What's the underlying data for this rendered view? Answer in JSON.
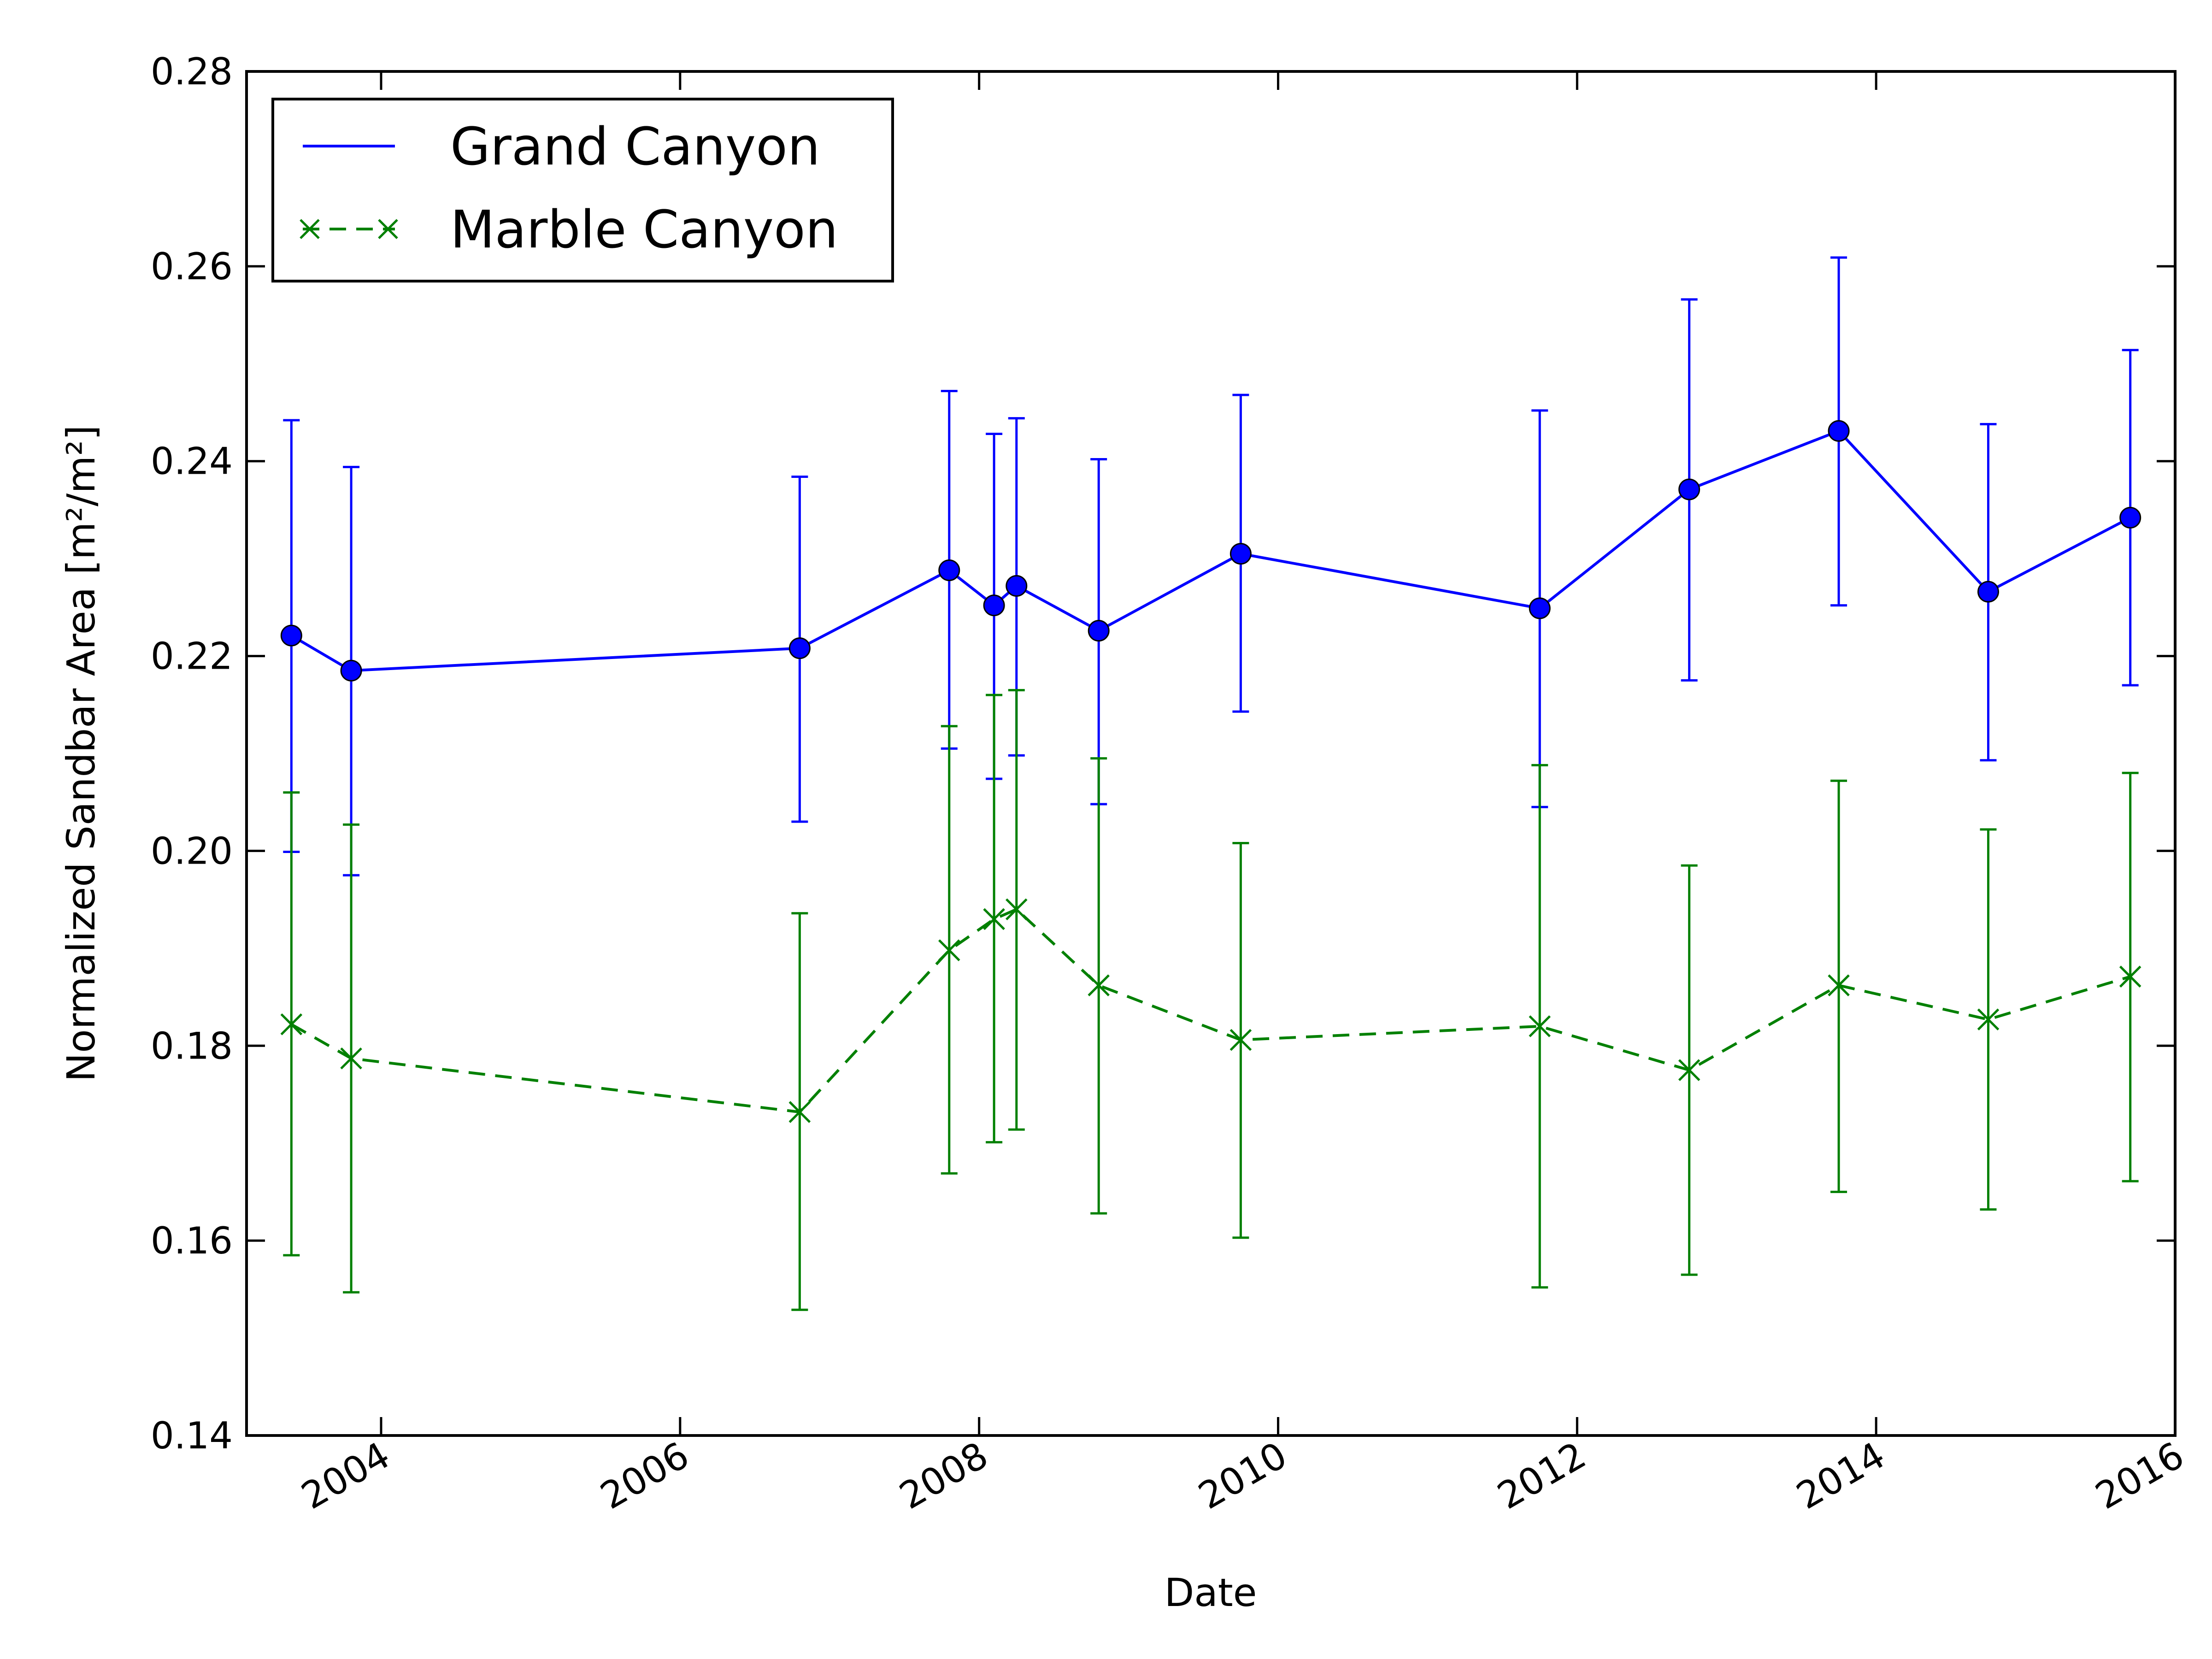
{
  "chart_data": {
    "type": "line",
    "xlabel": "Date",
    "ylabel": "Normalized Sandbar Area [m²/m²]",
    "xlim": [
      2003.1,
      2016.0
    ],
    "ylim": [
      0.14,
      0.28
    ],
    "x_ticks": [
      2004,
      2006,
      2008,
      2010,
      2012,
      2014,
      2016
    ],
    "y_ticks": [
      0.14,
      0.16,
      0.18,
      0.2,
      0.22,
      0.24,
      0.26,
      0.28
    ],
    "y_tick_labels": [
      "0.14",
      "0.16",
      "0.18",
      "0.20",
      "0.22",
      "0.24",
      "0.26",
      "0.28"
    ],
    "grid": false,
    "legend_position": "top-left",
    "series": [
      {
        "name": "Grand Canyon",
        "color": "#0000ff",
        "line_style": "solid",
        "marker": "circle",
        "x": [
          2003.4,
          2003.8,
          2006.8,
          2007.8,
          2008.1,
          2008.25,
          2008.8,
          2009.75,
          2011.75,
          2012.75,
          2013.75,
          2014.75,
          2015.7
        ],
        "y": [
          0.2221,
          0.2185,
          0.2208,
          0.2288,
          0.2252,
          0.2272,
          0.2226,
          0.2305,
          0.2249,
          0.2371,
          0.2431,
          0.2266,
          0.2342
        ],
        "err_low": [
          0.1999,
          0.1975,
          0.203,
          0.2105,
          0.2074,
          0.2098,
          0.2048,
          0.2143,
          0.2045,
          0.2175,
          0.2252,
          0.2093,
          0.217
        ],
        "err_high": [
          0.2442,
          0.2394,
          0.2384,
          0.2472,
          0.2428,
          0.2444,
          0.2402,
          0.2468,
          0.2452,
          0.2566,
          0.2609,
          0.2438,
          0.2514
        ]
      },
      {
        "name": "Marble Canyon",
        "color": "#008000",
        "line_style": "dashed",
        "marker": "x",
        "x": [
          2003.4,
          2003.8,
          2006.8,
          2007.8,
          2008.1,
          2008.25,
          2008.8,
          2009.75,
          2011.75,
          2012.75,
          2013.75,
          2014.75,
          2015.7
        ],
        "y": [
          0.1822,
          0.1787,
          0.1732,
          0.1898,
          0.193,
          0.194,
          0.1862,
          0.1806,
          0.182,
          0.1775,
          0.1862,
          0.1827,
          0.1871
        ],
        "err_low": [
          0.1585,
          0.1547,
          0.1529,
          0.1669,
          0.1701,
          0.1714,
          0.1628,
          0.1603,
          0.1552,
          0.1565,
          0.165,
          0.1632,
          0.1661
        ],
        "err_high": [
          0.206,
          0.2027,
          0.1936,
          0.2128,
          0.216,
          0.2165,
          0.2095,
          0.2008,
          0.2088,
          0.1985,
          0.2072,
          0.2022,
          0.208
        ]
      }
    ]
  }
}
